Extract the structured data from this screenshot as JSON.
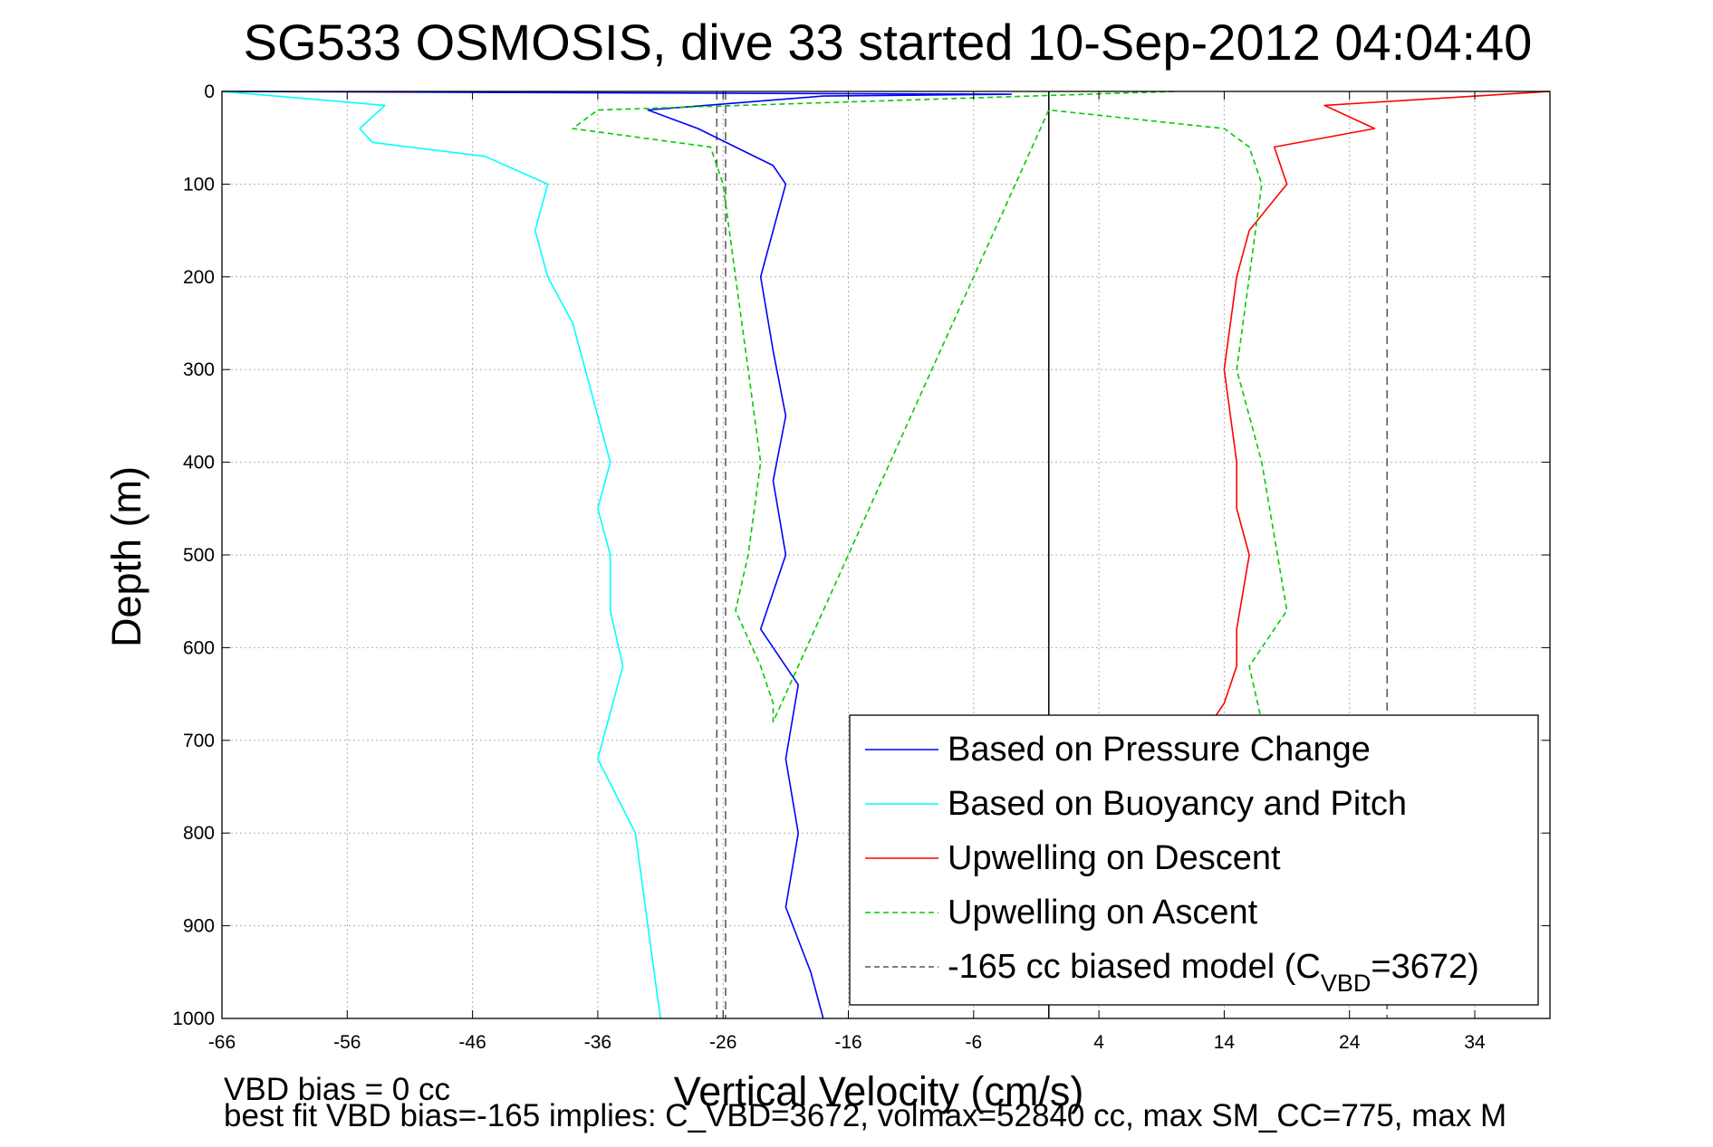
{
  "chart_data": {
    "type": "line",
    "title": "SG533 OSMOSIS, dive 33 started 10-Sep-2012 04:04:40",
    "xlabel": "Vertical Velocity (cm/s)",
    "ylabel": "Depth (m)",
    "xlim": [
      -66,
      40
    ],
    "ylim": [
      0,
      1000
    ],
    "y_reversed": true,
    "grid": true,
    "x_ticks": [
      -66,
      -56,
      -46,
      -36,
      -26,
      -16,
      -6,
      4,
      14,
      24,
      34
    ],
    "y_ticks": [
      0,
      100,
      200,
      300,
      400,
      500,
      600,
      700,
      800,
      900,
      1000
    ],
    "legend_position": "bottom-right",
    "legend": [
      {
        "label": "Based on Pressure Change",
        "color": "#0000ff",
        "dash": "solid"
      },
      {
        "label": "Based on Buoyancy and Pitch",
        "color": "#00ffff",
        "dash": "solid"
      },
      {
        "label": "Upwelling on Descent",
        "color": "#ff0000",
        "dash": "solid"
      },
      {
        "label": "Upwelling on Ascent",
        "color": "#00cc00",
        "dash": "dashed"
      },
      {
        "label": "-165 cc biased model (C",
        "sub": "VBD",
        "suffix": "=3672)",
        "color": "#555555",
        "dash": "dashed"
      }
    ],
    "reference_lines": [
      {
        "x": -26.5,
        "color": "#555555",
        "dash": "dashed"
      },
      {
        "x": -25.8,
        "color": "#555555",
        "dash": "dashed"
      },
      {
        "x": 0,
        "color": "#000000",
        "dash": "solid"
      },
      {
        "x": 27,
        "color": "#555555",
        "dash": "dashed"
      }
    ],
    "series": [
      {
        "name": "Based on Pressure Change",
        "color": "#0000ff",
        "dash": "solid",
        "x": [
          -66,
          -3,
          -18,
          -32,
          -28,
          -22,
          -21,
          -22,
          -23,
          -22,
          -21,
          -22,
          -21,
          -23,
          -20,
          -21,
          -20,
          -21,
          -19,
          -18
        ],
        "y": [
          0,
          3,
          5,
          20,
          40,
          80,
          100,
          150,
          200,
          280,
          350,
          420,
          500,
          580,
          640,
          720,
          800,
          880,
          950,
          1000
        ]
      },
      {
        "name": "Based on Buoyancy and Pitch",
        "color": "#00ffff",
        "dash": "solid",
        "x": [
          -66,
          -53,
          -55,
          -54,
          -45,
          -40,
          -41,
          -40,
          -38,
          -37,
          -36,
          -35,
          -36,
          -35,
          -35,
          -34,
          -36,
          -33,
          -32,
          -31
        ],
        "y": [
          0,
          15,
          40,
          55,
          70,
          100,
          150,
          200,
          250,
          300,
          350,
          400,
          450,
          500,
          560,
          620,
          720,
          800,
          900,
          1000
        ]
      },
      {
        "name": "Upwelling on Descent",
        "color": "#ff0000",
        "dash": "solid",
        "x": [
          40,
          22,
          26,
          18,
          19,
          16,
          15,
          14,
          15,
          15,
          16,
          15,
          15,
          14,
          13
        ],
        "y": [
          0,
          15,
          40,
          60,
          100,
          150,
          200,
          300,
          400,
          450,
          500,
          580,
          620,
          660,
          680
        ]
      },
      {
        "name": "Upwelling on Ascent",
        "color": "#00cc00",
        "dash": "dashed",
        "x": [
          10,
          -36,
          -38,
          -27,
          -26,
          -25,
          -24,
          -23,
          -24,
          -25,
          -23,
          -22,
          -22,
          0,
          14,
          16,
          17,
          16,
          15,
          17,
          19,
          16,
          17
        ],
        "y": [
          0,
          20,
          40,
          60,
          100,
          200,
          300,
          400,
          500,
          560,
          620,
          660,
          680,
          20,
          40,
          60,
          100,
          200,
          300,
          400,
          560,
          620,
          680
        ]
      }
    ]
  },
  "footer": {
    "line1": "VBD bias = 0 cc",
    "line2": "best fit VBD bias=-165 implies: C_VBD=3672, volmax=52840 cc, max SM_CC=775, max M"
  }
}
